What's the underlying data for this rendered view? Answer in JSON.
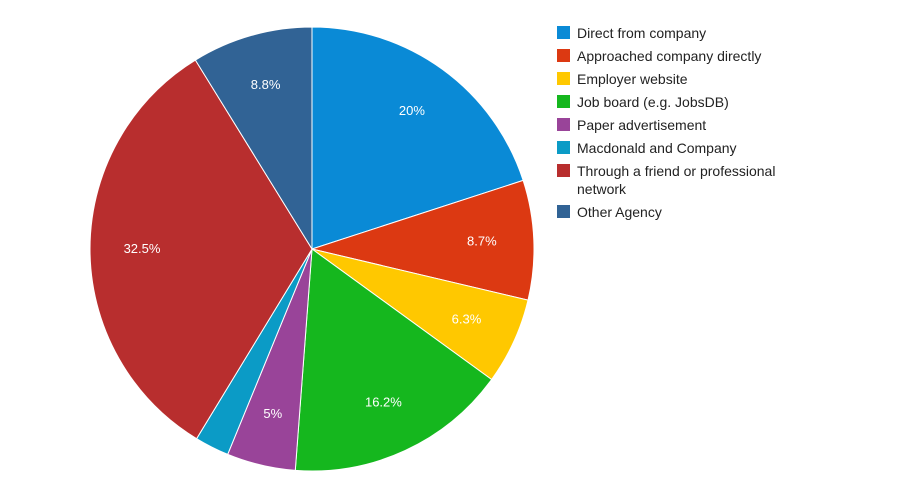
{
  "chart_data": {
    "type": "pie",
    "title": "",
    "legend_position": "right",
    "slices": [
      {
        "label": "Direct from company",
        "value": 20,
        "display": "20%",
        "color": "#0a8ad6"
      },
      {
        "label": "Approached company directly",
        "value": 8.7,
        "display": "8.7%",
        "color": "#dc3912"
      },
      {
        "label": "Employer website",
        "value": 6.3,
        "display": "6.3%",
        "color": "#ffc800"
      },
      {
        "label": "Job board (e.g. JobsDB)",
        "value": 16.2,
        "display": "16.2%",
        "color": "#15b71e"
      },
      {
        "label": "Paper advertisement",
        "value": 5,
        "display": "5%",
        "color": "#994499"
      },
      {
        "label": "Macdonald and Company",
        "value": 2.5,
        "display": "",
        "color": "#0b9bc6"
      },
      {
        "label": "Through a friend or professional network",
        "value": 32.5,
        "display": "32.5%",
        "color": "#b82e2e"
      },
      {
        "label": "Other Agency",
        "value": 8.8,
        "display": "8.8%",
        "color": "#316395"
      }
    ]
  }
}
